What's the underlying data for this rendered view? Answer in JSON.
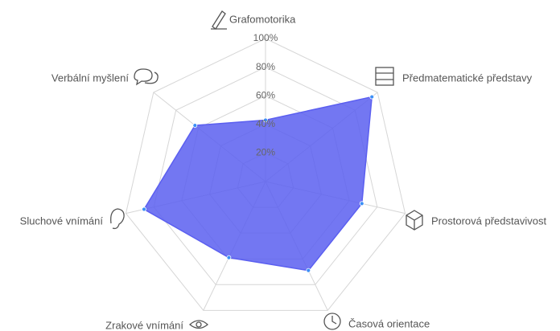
{
  "chart_data": {
    "type": "radar",
    "categories": [
      "Grafomotorika",
      "Předmatematické představy",
      "Prostorová představivost",
      "Časová orientace",
      "Zrakové vnímání",
      "Sluchové vnímání",
      "Verbální myšlení"
    ],
    "series": [
      {
        "color": "#5b5ff0",
        "values": [
          43,
          95,
          69,
          69,
          59,
          87,
          63
        ]
      }
    ],
    "ylim": [
      0,
      100
    ],
    "yticks": [
      {
        "value": 20,
        "label": "20%"
      },
      {
        "value": 40,
        "label": "40%"
      },
      {
        "value": 60,
        "label": "60%"
      },
      {
        "value": 80,
        "label": "80%"
      },
      {
        "value": 100,
        "label": "100%"
      }
    ],
    "grid": true
  }
}
